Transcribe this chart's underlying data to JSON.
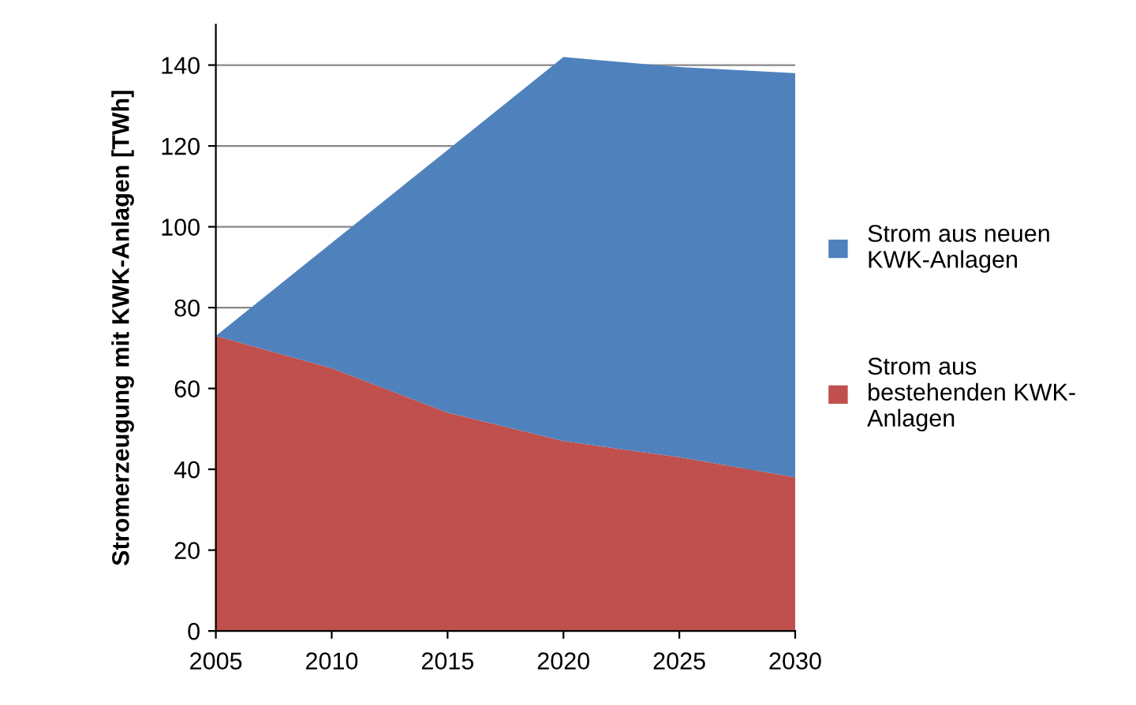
{
  "chart_data": {
    "type": "area",
    "stacked": true,
    "ylabel": "Stromerzeugung mit KWK-Anlagen [TWh]",
    "x": [
      2005,
      2010,
      2015,
      2020,
      2025,
      2030
    ],
    "series": [
      {
        "name": "Strom aus\nbestehenden KWK-\nAnlagen",
        "color": "#c0504d",
        "values": [
          73,
          65,
          54,
          47,
          43,
          38
        ]
      },
      {
        "name": "Strom aus neuen\nKWK-Anlagen",
        "color": "#4f81bd",
        "values": [
          0,
          31,
          65,
          95,
          96.5,
          100
        ]
      }
    ],
    "xlim": [
      2005,
      2030
    ],
    "xticks": [
      2005,
      2010,
      2015,
      2020,
      2025,
      2030
    ],
    "ylim": [
      0,
      150
    ],
    "yticks": [
      0,
      20,
      40,
      60,
      80,
      100,
      120,
      140
    ],
    "grid": "y",
    "legend": "right"
  }
}
